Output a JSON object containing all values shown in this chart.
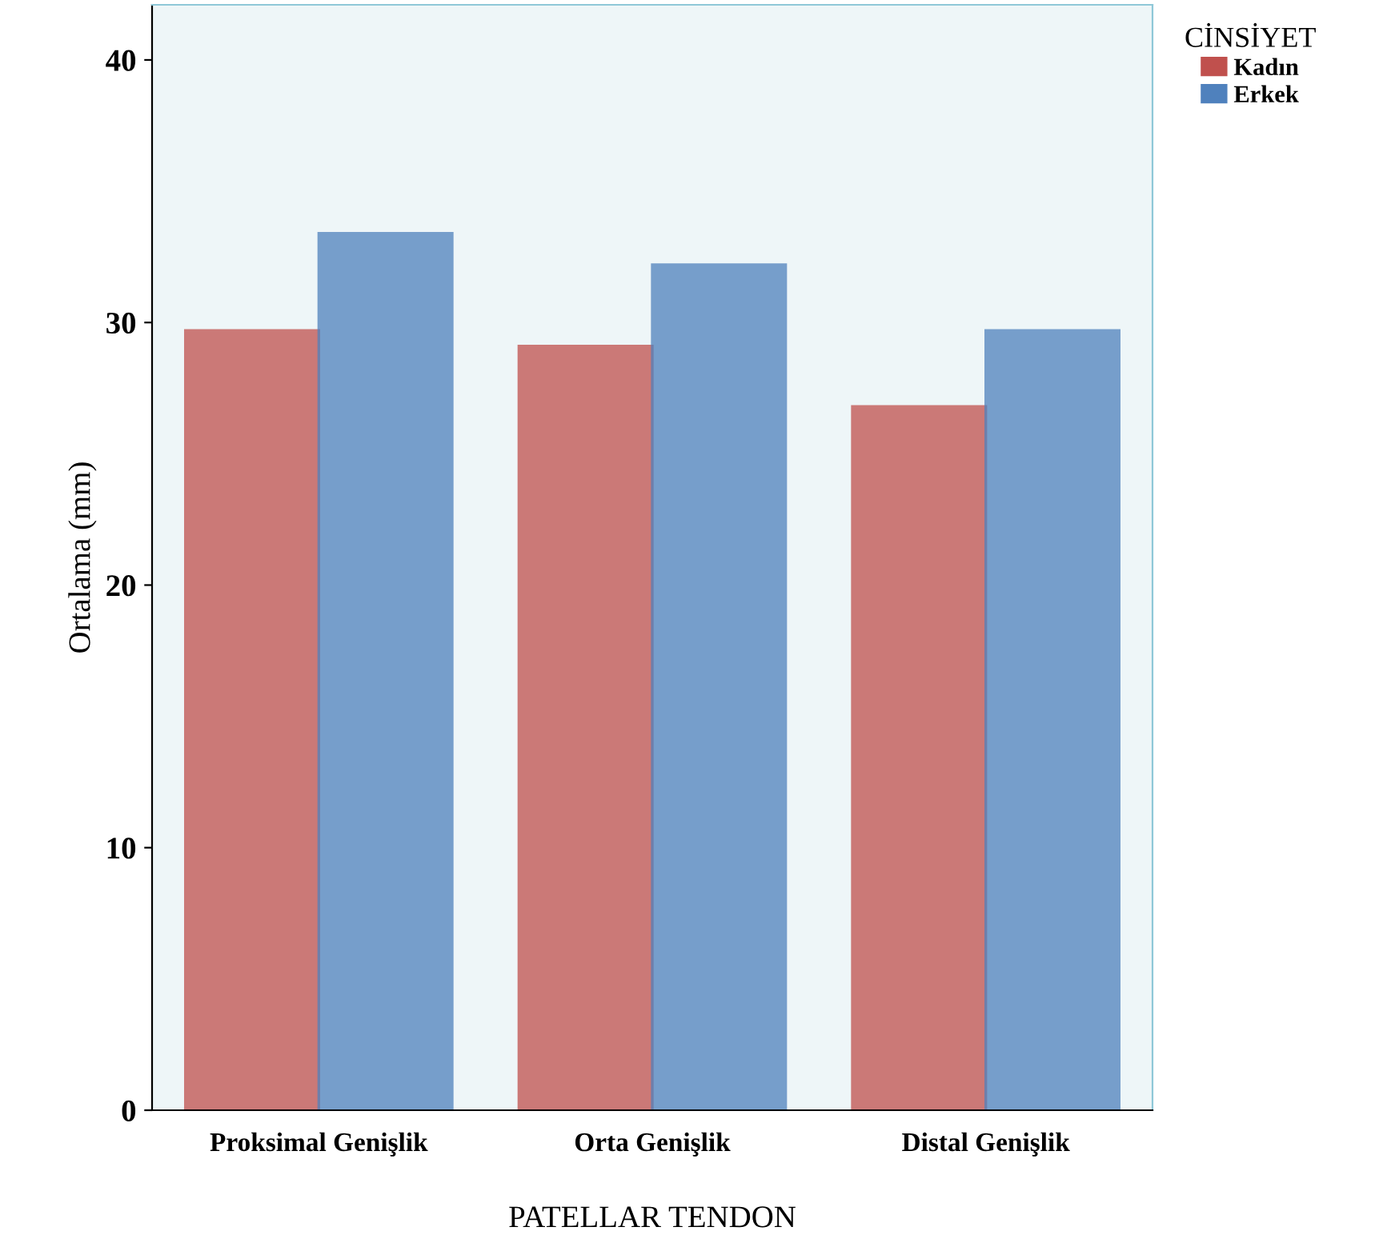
{
  "chart_data": {
    "type": "bar",
    "xlabel": "PATELLAR TENDON",
    "ylabel": "Ortalama (mm)",
    "legend_title": "CİNSİYET",
    "categories": [
      "Proksimal Genişlik",
      "Orta Genişlik",
      "Distal Genişlik"
    ],
    "series": [
      {
        "name": "Kadın",
        "color": "#c0504d",
        "values": [
          29.7,
          29.1,
          26.8
        ]
      },
      {
        "name": "Erkek",
        "color": "#4f81bd",
        "values": [
          33.4,
          32.2,
          29.7
        ]
      }
    ],
    "ylim": [
      0,
      42.1
    ],
    "yticks": [
      0,
      10,
      20,
      30,
      40
    ],
    "grid": false,
    "legend": "top right"
  }
}
